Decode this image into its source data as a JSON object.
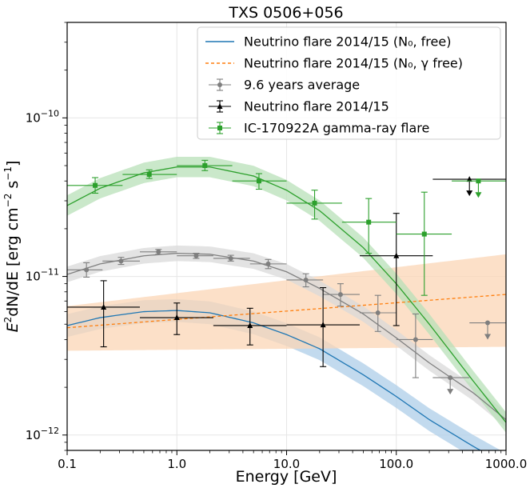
{
  "chart_data": {
    "type": "scatter",
    "title": "TXS 0506+056",
    "xlabel": "Energy [GeV]",
    "ylabel_parts": {
      "main": "E",
      "exp": "2",
      "rest": "dN/dE [erg cm",
      "exp2": "−2",
      "mid": " s",
      "exp3": "−1",
      "end": "]"
    },
    "x_scale": "log",
    "y_scale": "log",
    "xlim": [
      0.1,
      1000
    ],
    "ylim": [
      8e-13,
      4e-10
    ],
    "grid": true,
    "legend_position": "upper right",
    "x_ticks": [
      {
        "value": 0.1,
        "label": "0.1"
      },
      {
        "value": 1,
        "label": "1.0"
      },
      {
        "value": 10,
        "label": "10.0"
      },
      {
        "value": 100,
        "label": "100.0"
      },
      {
        "value": 1000,
        "label": "1000.0"
      }
    ],
    "y_ticks": [
      {
        "value": 1e-12,
        "base": "10",
        "exp": "−12"
      },
      {
        "value": 1e-11,
        "base": "10",
        "exp": "−11"
      },
      {
        "value": 1e-10,
        "base": "10",
        "exp": "−10"
      }
    ],
    "series": [
      {
        "name": "Neutrino flare 2014/15 (N₀, free)",
        "kind": "curve",
        "color": "#1f77b4",
        "band_color": "#aecde8",
        "dashed": false,
        "x": [
          0.1,
          0.2,
          0.5,
          1,
          2,
          5,
          10,
          20,
          50,
          100,
          200,
          500,
          1000
        ],
        "y": [
          4.9e-12,
          5.5e-12,
          6e-12,
          6.1e-12,
          5.9e-12,
          5.1e-12,
          4.3e-12,
          3.5e-12,
          2.4e-12,
          1.75e-12,
          1.25e-12,
          8.5e-13,
          6.5e-13
        ],
        "band_factor": 1.18
      },
      {
        "name": "Neutrino flare 2014/15 (N₀, γ free)",
        "kind": "curve",
        "color": "#ff7f0e",
        "band_color": "#fbd5b5",
        "dashed": true,
        "x": [
          0.1,
          1000
        ],
        "y": [
          4.75e-12,
          7.7e-12
        ],
        "band_lo": [
          3.4e-12,
          3.6e-12
        ],
        "band_hi": [
          6.5e-12,
          1.38e-11
        ]
      },
      {
        "name": "9.6 years average",
        "kind": "points",
        "color": "#7f7f7f",
        "curve_color": "#808080",
        "band_color": "#d9d9d9",
        "marker": "circle",
        "x": [
          0.1,
          0.2,
          0.5,
          1,
          2,
          5,
          10,
          20,
          50,
          100,
          200,
          500,
          1000
        ],
        "y": [
          1.03e-11,
          1.2e-11,
          1.35e-11,
          1.4e-11,
          1.38e-11,
          1.25e-11,
          1.07e-11,
          8.4e-12,
          5.8e-12,
          4.1e-12,
          2.85e-12,
          1.85e-12,
          1.25e-12
        ],
        "band_factor": 1.12,
        "points": [
          {
            "x": 0.15,
            "y": 1.1e-11,
            "xlo": 0.1,
            "xhi": 0.21,
            "ylo": 9.9e-12,
            "yhi": 1.22e-11
          },
          {
            "x": 0.31,
            "y": 1.25e-11,
            "xlo": 0.21,
            "xhi": 0.46,
            "ylo": 1.19e-11,
            "yhi": 1.32e-11
          },
          {
            "x": 0.68,
            "y": 1.43e-11,
            "xlo": 0.46,
            "xhi": 1.0,
            "ylo": 1.38e-11,
            "yhi": 1.48e-11
          },
          {
            "x": 1.5,
            "y": 1.35e-11,
            "xlo": 1.0,
            "xhi": 2.15,
            "ylo": 1.3e-11,
            "yhi": 1.4e-11
          },
          {
            "x": 3.1,
            "y": 1.3e-11,
            "xlo": 2.15,
            "xhi": 4.64,
            "ylo": 1.25e-11,
            "yhi": 1.36e-11
          },
          {
            "x": 6.8,
            "y": 1.2e-11,
            "xlo": 4.64,
            "xhi": 10.0,
            "ylo": 1.12e-11,
            "yhi": 1.28e-11
          },
          {
            "x": 15,
            "y": 9.5e-12,
            "xlo": 10.0,
            "xhi": 21.5,
            "ylo": 8.6e-12,
            "yhi": 1.04e-11
          },
          {
            "x": 31,
            "y": 7.7e-12,
            "xlo": 21.5,
            "xhi": 46.4,
            "ylo": 6.5e-12,
            "yhi": 9e-12
          },
          {
            "x": 68,
            "y": 5.9e-12,
            "xlo": 46.4,
            "xhi": 100,
            "ylo": 4.5e-12,
            "yhi": 7.6e-12
          },
          {
            "x": 150,
            "y": 4e-12,
            "xlo": 100,
            "xhi": 215,
            "ylo": 2.3e-12,
            "yhi": 5.8e-12
          },
          {
            "x": 310,
            "y": 2.3e-12,
            "xlo": 215,
            "xhi": 464,
            "upper_limit": true
          },
          {
            "x": 680,
            "y": 5.1e-12,
            "xlo": 464,
            "xhi": 1000,
            "upper_limit": true
          }
        ]
      },
      {
        "name": "Neutrino flare 2014/15",
        "kind": "points",
        "color": "#000000",
        "marker": "triangle",
        "points": [
          {
            "x": 0.215,
            "y": 6.4e-12,
            "xlo": 0.1,
            "xhi": 0.46,
            "ylo": 3.6e-12,
            "yhi": 9.4e-12
          },
          {
            "x": 1.0,
            "y": 5.5e-12,
            "xlo": 0.46,
            "xhi": 2.15,
            "ylo": 4.3e-12,
            "yhi": 6.8e-12
          },
          {
            "x": 4.64,
            "y": 4.9e-12,
            "xlo": 2.15,
            "xhi": 10.0,
            "ylo": 3.7e-12,
            "yhi": 6.3e-12
          },
          {
            "x": 21.5,
            "y": 4.95e-12,
            "xlo": 10.0,
            "xhi": 46.4,
            "ylo": 2.7e-12,
            "yhi": 8.5e-12
          },
          {
            "x": 100,
            "y": 1.35e-11,
            "xlo": 46.4,
            "xhi": 215,
            "ylo": 4.9e-12,
            "yhi": 2.5e-11
          },
          {
            "x": 464,
            "y": 4.1e-11,
            "xlo": 215,
            "xhi": 1000,
            "upper_limit": true
          }
        ]
      },
      {
        "name": "IC-170922A gamma-ray flare",
        "kind": "points",
        "color": "#2ca02c",
        "curve_color": "#2ca02c",
        "band_color": "#b8e0b8",
        "marker": "square",
        "x": [
          0.1,
          0.2,
          0.5,
          1,
          2,
          5,
          10,
          20,
          50,
          100,
          200,
          500,
          1000
        ],
        "y": [
          2.8e-11,
          3.6e-11,
          4.5e-11,
          4.9e-11,
          4.9e-11,
          4.3e-11,
          3.5e-11,
          2.6e-11,
          1.52e-11,
          9e-12,
          5e-12,
          2.2e-12,
          1.2e-12
        ],
        "band_factor": 1.16,
        "points": [
          {
            "x": 0.18,
            "y": 3.75e-11,
            "xlo": 0.1,
            "xhi": 0.32,
            "ylo": 3.35e-11,
            "yhi": 4.2e-11
          },
          {
            "x": 0.56,
            "y": 4.4e-11,
            "xlo": 0.32,
            "xhi": 1.0,
            "ylo": 4.15e-11,
            "yhi": 4.7e-11
          },
          {
            "x": 1.8,
            "y": 5e-11,
            "xlo": 1.0,
            "xhi": 3.2,
            "ylo": 4.65e-11,
            "yhi": 5.4e-11
          },
          {
            "x": 5.6,
            "y": 4e-11,
            "xlo": 3.2,
            "xhi": 10.0,
            "ylo": 3.55e-11,
            "yhi": 4.45e-11
          },
          {
            "x": 18,
            "y": 2.9e-11,
            "xlo": 10.0,
            "xhi": 32,
            "ylo": 2.3e-11,
            "yhi": 3.5e-11
          },
          {
            "x": 56,
            "y": 2.2e-11,
            "xlo": 32,
            "xhi": 100,
            "ylo": 1.4e-11,
            "yhi": 3.1e-11
          },
          {
            "x": 180,
            "y": 1.85e-11,
            "xlo": 100,
            "xhi": 320,
            "ylo": 7.6e-12,
            "yhi": 3.4e-11
          },
          {
            "x": 560,
            "y": 4e-11,
            "xlo": 320,
            "xhi": 1000,
            "upper_limit": true
          }
        ]
      }
    ]
  }
}
